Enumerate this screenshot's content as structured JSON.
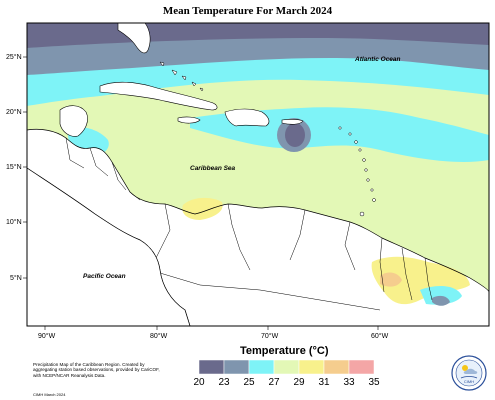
{
  "title": "Mean Temperature For March 2024",
  "map": {
    "lat_ticks": [
      "25°N",
      "20°N",
      "15°N",
      "10°N",
      "5°N"
    ],
    "lon_ticks": [
      "90°W",
      "80°W",
      "70°W",
      "60°W"
    ],
    "labels": {
      "atlantic": "Atlantic Ocean",
      "caribbean": "Caribbean Sea",
      "pacific": "Pacific Ocean"
    },
    "colors": {
      "t20_23": "#6a6a8c",
      "t23_25": "#7f95ae",
      "t25_27": "#7ef3f7",
      "t27_29": "#e3f8b6",
      "t29_31": "#f8f18c",
      "t31_33": "#f5cd8e",
      "t33_35": "#f4a6a6",
      "land": "#ffffff",
      "border": "#000000"
    }
  },
  "legend": {
    "title": "Temperature (°C)",
    "values": [
      "20",
      "23",
      "25",
      "27",
      "29",
      "31",
      "33",
      "35"
    ],
    "colors": [
      "#6a6a8c",
      "#7f95ae",
      "#7ef3f7",
      "#e3f8b6",
      "#f8f18c",
      "#f5cd8e",
      "#f4a6a6"
    ]
  },
  "credit": {
    "text": "Precipitation Map of the Caribbean Region. Created by aggregating station based observations, provided by CariCOF, with NCEP/NCAR Reanalysis Data.",
    "date": "CIMH March 2024"
  },
  "logo": {
    "text": "CIMH"
  }
}
